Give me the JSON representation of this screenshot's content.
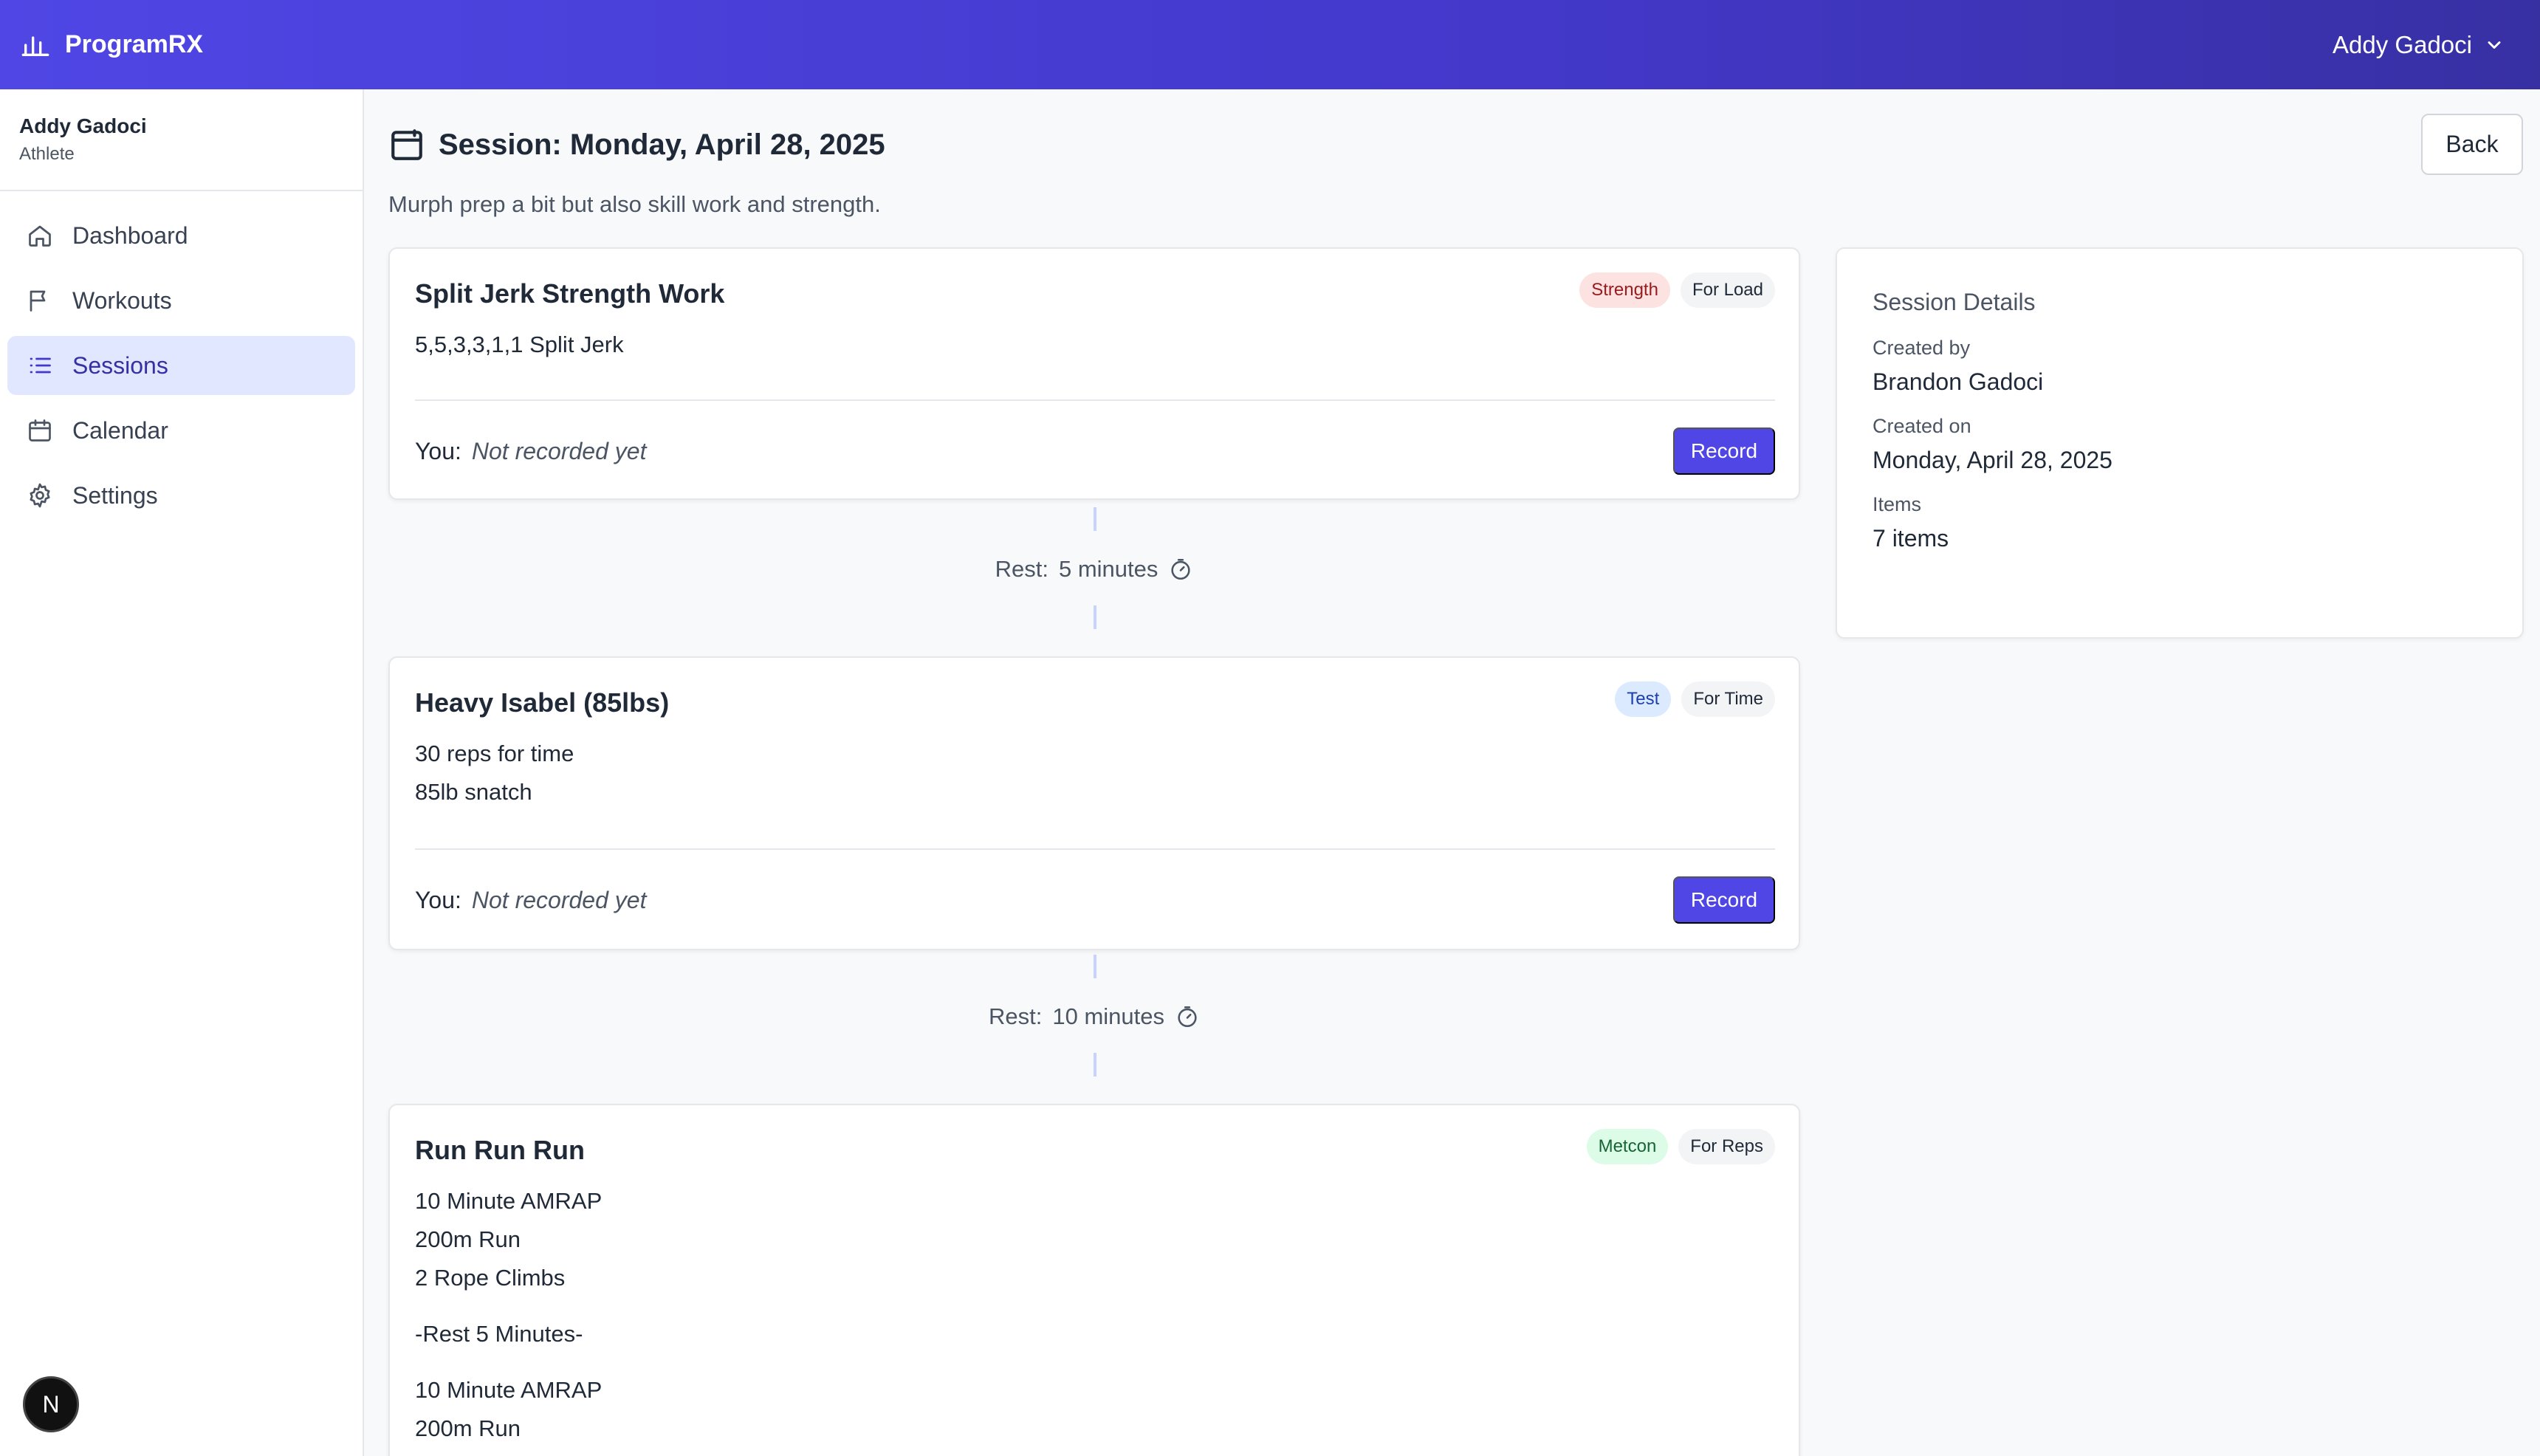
{
  "app": {
    "name": "ProgramRX",
    "user_menu": "Addy Gadoci"
  },
  "sidebar": {
    "profile": {
      "name": "Addy Gadoci",
      "role": "Athlete"
    },
    "items": [
      {
        "label": "Dashboard",
        "icon": "home-icon"
      },
      {
        "label": "Workouts",
        "icon": "flag-icon"
      },
      {
        "label": "Sessions",
        "icon": "list-icon",
        "active": true
      },
      {
        "label": "Calendar",
        "icon": "calendar-icon"
      },
      {
        "label": "Settings",
        "icon": "gear-icon"
      }
    ]
  },
  "page": {
    "title": "Session: Monday, April 28, 2025",
    "description": "Murph prep a bit but also skill work and strength.",
    "back_label": "Back"
  },
  "items": [
    {
      "title": "Split Jerk Strength Work",
      "badges": [
        "Strength",
        "For Load"
      ],
      "lines": [
        "5,5,3,3,1,1 Split Jerk"
      ],
      "you_label": "You:",
      "result": "Not recorded yet",
      "record_label": "Record"
    },
    {
      "title": "Heavy Isabel (85lbs)",
      "badges": [
        "Test",
        "For Time"
      ],
      "lines": [
        "30 reps for time",
        "85lb snatch"
      ],
      "you_label": "You:",
      "result": "Not recorded yet",
      "record_label": "Record"
    },
    {
      "title": "Run Run Run",
      "badges": [
        "Metcon",
        "For Reps"
      ],
      "lines": [
        "10 Minute AMRAP",
        "200m Run",
        "2 Rope Climbs",
        "-Rest 5 Minutes-",
        "10 Minute AMRAP",
        "200m Run"
      ]
    }
  ],
  "rests": [
    {
      "label": "Rest:",
      "value": "5 minutes"
    },
    {
      "label": "Rest:",
      "value": "10 minutes"
    }
  ],
  "details": {
    "heading": "Session Details",
    "created_by_label": "Created by",
    "created_by": "Brandon Gadoci",
    "created_on_label": "Created on",
    "created_on": "Monday, April 28, 2025",
    "items_label": "Items",
    "items_value": "7 items"
  },
  "dev_badge": "N",
  "colors": {
    "primary": "#4f46e5",
    "header_end": "#3730a3",
    "active_bg": "#e0e7ff"
  }
}
